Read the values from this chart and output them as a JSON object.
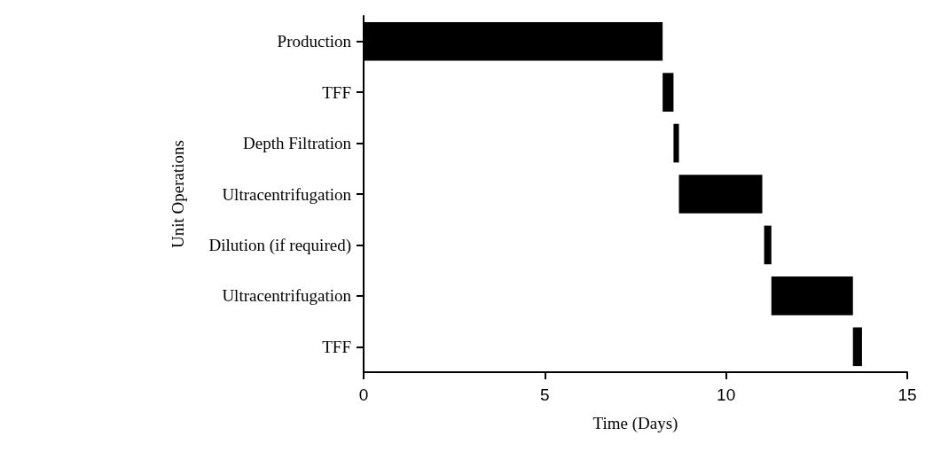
{
  "chart_data": {
    "type": "bar",
    "orientation": "horizontal",
    "xlabel": "Time (Days)",
    "ylabel": "Unit Operations",
    "categories": [
      "Production",
      "TFF",
      "Depth Filtration",
      "Ultracentrifugation",
      "Dilution (if required)",
      "Ultracentrifugation",
      "TFF"
    ],
    "base": [
      0,
      8.25,
      8.55,
      8.7,
      11.05,
      11.25,
      13.5
    ],
    "values": [
      8.25,
      0.3,
      0.15,
      2.3,
      0.2,
      2.25,
      0.25
    ],
    "color": "#000000",
    "xlim": [
      0,
      15
    ],
    "xticks": [
      0,
      5,
      10,
      15
    ],
    "grid": false
  }
}
